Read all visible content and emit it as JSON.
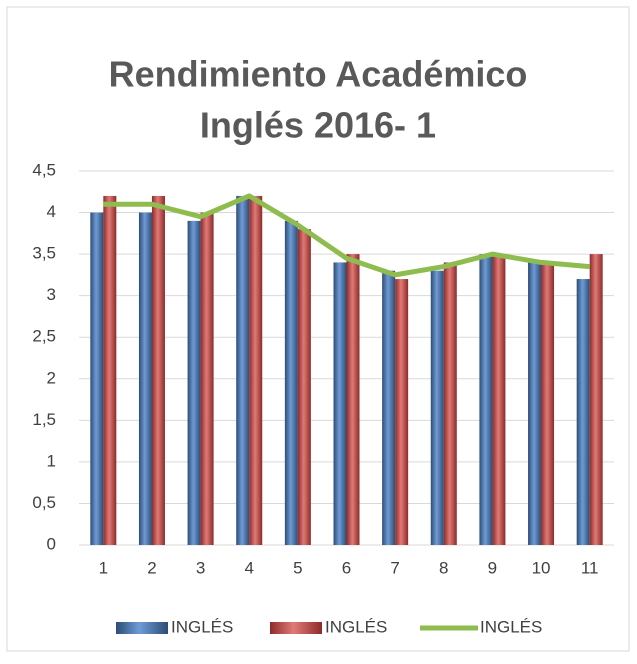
{
  "chart_data": {
    "type": "bar_line",
    "title": [
      "Rendimiento Académico",
      "Inglés 2016- 1"
    ],
    "categories": [
      "1",
      "2",
      "3",
      "4",
      "5",
      "6",
      "7",
      "8",
      "9",
      "10",
      "11"
    ],
    "series": [
      {
        "name": "INGLÉS",
        "type": "bar",
        "color": "#4f81bd",
        "values": [
          4.0,
          4.0,
          3.9,
          4.2,
          3.9,
          3.4,
          3.3,
          3.3,
          3.5,
          3.4,
          3.2
        ]
      },
      {
        "name": "INGLÉS",
        "type": "bar",
        "color": "#c0504d",
        "values": [
          4.2,
          4.2,
          4.0,
          4.2,
          3.8,
          3.5,
          3.2,
          3.4,
          3.5,
          3.4,
          3.5
        ]
      },
      {
        "name": "INGLÉS",
        "type": "line",
        "color": "#8fbc4f",
        "values": [
          4.1,
          4.1,
          3.95,
          4.2,
          3.85,
          3.45,
          3.25,
          3.35,
          3.5,
          3.4,
          3.35
        ]
      }
    ],
    "ylim": [
      0,
      4.5
    ],
    "yticks": [
      0,
      {
        "value": 0.5,
        "label": "0,5"
      },
      1,
      {
        "value": 1.5,
        "label": "1,5"
      },
      2,
      {
        "value": 2.5,
        "label": "2,5"
      },
      3,
      {
        "value": 3.5,
        "label": "3,5"
      },
      4,
      {
        "value": 4.5,
        "label": "4,5"
      }
    ],
    "grid": true,
    "legend": "bottom"
  }
}
